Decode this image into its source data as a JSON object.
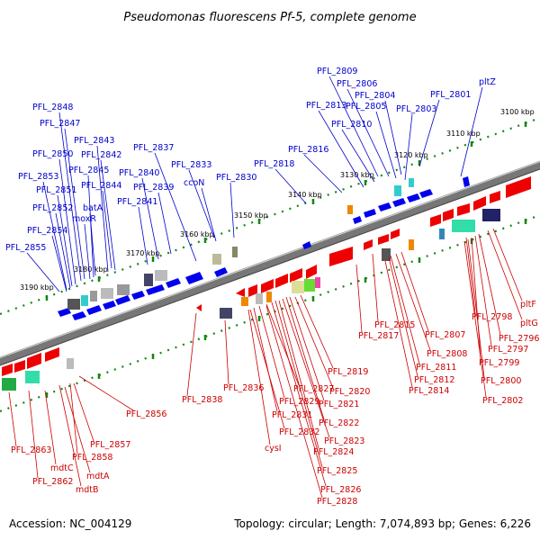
{
  "title": "Pseudomonas fluorescens Pf-5, complete genome",
  "footer": {
    "accession": "Accession: NC_004129",
    "summary": "Topology: circular; Length: 7,074,893 bp; Genes: 6,226"
  },
  "scale_labels": [
    "3100 kbp",
    "3110 kbp",
    "3120 kbp",
    "3130 kbp",
    "3140 kbp",
    "3150 kbp",
    "3160 kbp",
    "3170 kbp",
    "3180 kbp",
    "3190 kbp"
  ],
  "forward_labels": [
    "pltZ",
    "PFL_2801",
    "PFL_2803",
    "PFL_2804",
    "PFL_2805",
    "PFL_2806",
    "PFL_2809",
    "PFL_2810",
    "PFL_2813",
    "PFL_2816",
    "PFL_2818",
    "PFL_2830",
    "ccoN",
    "PFL_2833",
    "PFL_2837",
    "PFL_2839",
    "PFL_2840",
    "PFL_2841",
    "PFL_2842",
    "PFL_2843",
    "PFL_2844",
    "PFL_2845",
    "PFL_2847",
    "PFL_2848",
    "batA",
    "moxR",
    "PFL_2850",
    "PFL_2851",
    "PFL_2852",
    "PFL_2853",
    "PFL_2854",
    "PFL_2855"
  ],
  "reverse_labels": [
    "pltF",
    "pltG",
    "PFL_2796",
    "PFL_2797",
    "PFL_2798",
    "PFL_2799",
    "PFL_2800",
    "PFL_2802",
    "PFL_2807",
    "PFL_2808",
    "PFL_2811",
    "PFL_2812",
    "PFL_2814",
    "PFL_2815",
    "PFL_2817",
    "PFL_2819",
    "PFL_2820",
    "PFL_2821",
    "PFL_2822",
    "PFL_2823",
    "PFL_2824",
    "PFL_2825",
    "PFL_2826",
    "PFL_2827",
    "PFL_2828",
    "PFL_2829",
    "PFL_2831",
    "PFL_2832",
    "cysI",
    "PFL_2836",
    "PFL_2838",
    "PFL_2856",
    "PFL_2857",
    "PFL_2858",
    "mdtA",
    "mdtB",
    "mdtC",
    "PFL_2862",
    "PFL_2863"
  ],
  "colors": {
    "forward_gene": "#0000ee",
    "reverse_gene": "#ee0000",
    "backbone": "#777777",
    "tick": "#118811"
  }
}
